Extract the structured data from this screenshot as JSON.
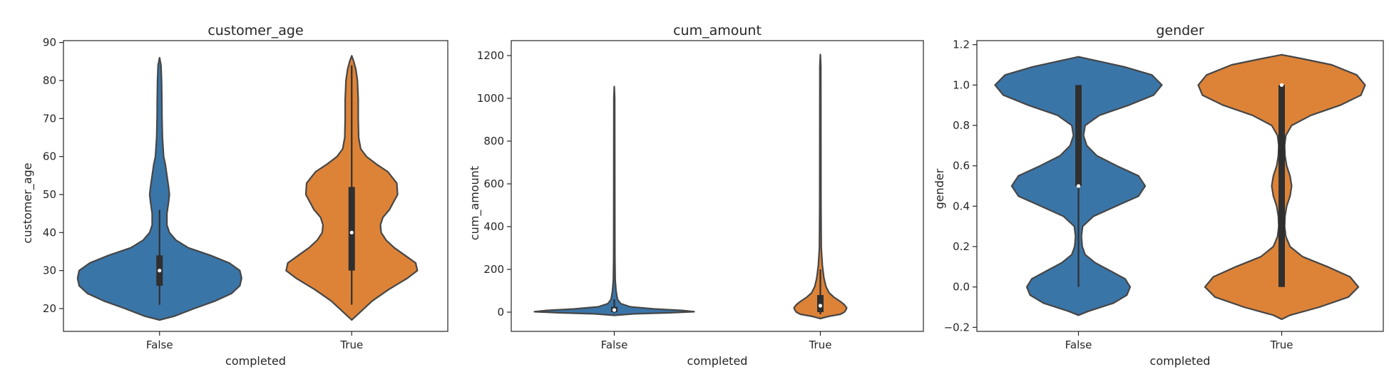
{
  "colors": {
    "false": "#3a75a8",
    "true": "#dd8338",
    "outline": "#464646",
    "box": "#2f2f2f"
  },
  "chart_data": [
    {
      "type": "violin",
      "title": "customer_age",
      "xlabel": "completed",
      "ylabel": "customer_age",
      "categories": [
        "False",
        "True"
      ],
      "ylim": [
        14,
        90.5
      ],
      "yticks": [
        20,
        30,
        40,
        50,
        60,
        70,
        80,
        90
      ],
      "ytick_labels": [
        "20",
        "30",
        "40",
        "50",
        "60",
        "70",
        "80",
        "90"
      ],
      "series": [
        {
          "category": "False",
          "q1": 26,
          "median": 30,
          "q3": 34,
          "whisker_low": 21,
          "whisker_high": 46,
          "density": [
            [
              17,
              0
            ],
            [
              18,
              0.18
            ],
            [
              20,
              0.42
            ],
            [
              22,
              0.68
            ],
            [
              24,
              0.88
            ],
            [
              26,
              0.98
            ],
            [
              28,
              1.0
            ],
            [
              30,
              0.98
            ],
            [
              32,
              0.85
            ],
            [
              34,
              0.62
            ],
            [
              36,
              0.35
            ],
            [
              38,
              0.2
            ],
            [
              40,
              0.12
            ],
            [
              42,
              0.09
            ],
            [
              45,
              0.09
            ],
            [
              48,
              0.11
            ],
            [
              50,
              0.12
            ],
            [
              52,
              0.11
            ],
            [
              55,
              0.09
            ],
            [
              58,
              0.07
            ],
            [
              60,
              0.05
            ],
            [
              65,
              0.035
            ],
            [
              70,
              0.03
            ],
            [
              75,
              0.028
            ],
            [
              80,
              0.025
            ],
            [
              84,
              0.018
            ],
            [
              86,
              0
            ]
          ]
        },
        {
          "category": "True",
          "q1": 30,
          "median": 40,
          "q3": 52,
          "whisker_low": 21,
          "whisker_high": 84,
          "density": [
            [
              17,
              0
            ],
            [
              19,
              0.1
            ],
            [
              22,
              0.25
            ],
            [
              25,
              0.45
            ],
            [
              28,
              0.68
            ],
            [
              30,
              0.8
            ],
            [
              32,
              0.78
            ],
            [
              34,
              0.65
            ],
            [
              36,
              0.52
            ],
            [
              38,
              0.42
            ],
            [
              40,
              0.36
            ],
            [
              42,
              0.35
            ],
            [
              44,
              0.38
            ],
            [
              46,
              0.46
            ],
            [
              50,
              0.56
            ],
            [
              53,
              0.55
            ],
            [
              56,
              0.44
            ],
            [
              58,
              0.3
            ],
            [
              60,
              0.18
            ],
            [
              62,
              0.11
            ],
            [
              65,
              0.085
            ],
            [
              70,
              0.08
            ],
            [
              75,
              0.08
            ],
            [
              80,
              0.07
            ],
            [
              83,
              0.05
            ],
            [
              85,
              0.025
            ],
            [
              86.5,
              0
            ]
          ]
        }
      ]
    },
    {
      "type": "violin",
      "title": "cum_amount",
      "xlabel": "completed",
      "ylabel": "cum_amount",
      "categories": [
        "False",
        "True"
      ],
      "ylim": [
        -90,
        1270
      ],
      "yticks": [
        0,
        200,
        400,
        600,
        800,
        1000,
        1200
      ],
      "ytick_labels": [
        "0",
        "200",
        "400",
        "600",
        "800",
        "1000",
        "1200"
      ],
      "series": [
        {
          "category": "False",
          "q1": 0,
          "median": 10,
          "q3": 25,
          "whisker_low": -5,
          "whisker_high": 60,
          "density": [
            [
              -15,
              0
            ],
            [
              -8,
              0.25
            ],
            [
              -3,
              0.7
            ],
            [
              2,
              1.0
            ],
            [
              8,
              0.85
            ],
            [
              15,
              0.5
            ],
            [
              25,
              0.2
            ],
            [
              40,
              0.08
            ],
            [
              60,
              0.04
            ],
            [
              100,
              0.022
            ],
            [
              150,
              0.012
            ],
            [
              250,
              0.008
            ],
            [
              400,
              0.007
            ],
            [
              700,
              0.006
            ],
            [
              1000,
              0.005
            ],
            [
              1055,
              0
            ]
          ]
        },
        {
          "category": "True",
          "q1": 0,
          "median": 30,
          "q3": 80,
          "whisker_low": -10,
          "whisker_high": 200,
          "density": [
            [
              -30,
              0
            ],
            [
              -20,
              0.1
            ],
            [
              -10,
              0.25
            ],
            [
              0,
              0.3
            ],
            [
              10,
              0.32
            ],
            [
              20,
              0.33
            ],
            [
              35,
              0.3
            ],
            [
              50,
              0.25
            ],
            [
              70,
              0.17
            ],
            [
              90,
              0.11
            ],
            [
              120,
              0.07
            ],
            [
              160,
              0.045
            ],
            [
              220,
              0.025
            ],
            [
              300,
              0.012
            ],
            [
              500,
              0.008
            ],
            [
              800,
              0.007
            ],
            [
              1150,
              0.006
            ],
            [
              1205,
              0
            ]
          ]
        }
      ]
    },
    {
      "type": "violin",
      "title": "gender",
      "xlabel": "completed",
      "ylabel": "gender",
      "categories": [
        "False",
        "True"
      ],
      "ylim": [
        -0.22,
        1.22
      ],
      "yticks": [
        -0.2,
        0.0,
        0.2,
        0.4,
        0.6,
        0.8,
        1.0,
        1.2
      ],
      "ytick_labels": [
        "−0.2",
        "0.0",
        "0.2",
        "0.4",
        "0.6",
        "0.8",
        "1.0",
        "1.2"
      ],
      "series": [
        {
          "category": "False",
          "q1": 0.5,
          "median": 0.5,
          "q3": 1.0,
          "whisker_low": 0.0,
          "whisker_high": 1.0,
          "density": [
            [
              -0.14,
              0
            ],
            [
              -0.12,
              0.12
            ],
            [
              -0.08,
              0.42
            ],
            [
              -0.04,
              0.58
            ],
            [
              0.0,
              0.62
            ],
            [
              0.04,
              0.56
            ],
            [
              0.08,
              0.38
            ],
            [
              0.12,
              0.2
            ],
            [
              0.16,
              0.08
            ],
            [
              0.2,
              0.045
            ],
            [
              0.25,
              0.035
            ],
            [
              0.3,
              0.05
            ],
            [
              0.35,
              0.18
            ],
            [
              0.4,
              0.45
            ],
            [
              0.45,
              0.72
            ],
            [
              0.5,
              0.8
            ],
            [
              0.55,
              0.72
            ],
            [
              0.6,
              0.46
            ],
            [
              0.65,
              0.22
            ],
            [
              0.7,
              0.1
            ],
            [
              0.75,
              0.06
            ],
            [
              0.8,
              0.08
            ],
            [
              0.85,
              0.25
            ],
            [
              0.9,
              0.6
            ],
            [
              0.95,
              0.9
            ],
            [
              1.0,
              1.0
            ],
            [
              1.05,
              0.88
            ],
            [
              1.09,
              0.55
            ],
            [
              1.12,
              0.22
            ],
            [
              1.14,
              0
            ]
          ]
        },
        {
          "category": "True",
          "q1": 0.0,
          "median": 1.0,
          "q3": 1.0,
          "whisker_low": 0.0,
          "whisker_high": 1.0,
          "density": [
            [
              -0.16,
              0
            ],
            [
              -0.14,
              0.1
            ],
            [
              -0.1,
              0.45
            ],
            [
              -0.05,
              0.8
            ],
            [
              0.0,
              0.92
            ],
            [
              0.05,
              0.82
            ],
            [
              0.1,
              0.55
            ],
            [
              0.15,
              0.25
            ],
            [
              0.2,
              0.1
            ],
            [
              0.25,
              0.05
            ],
            [
              0.3,
              0.035
            ],
            [
              0.35,
              0.04
            ],
            [
              0.4,
              0.06
            ],
            [
              0.45,
              0.1
            ],
            [
              0.5,
              0.12
            ],
            [
              0.55,
              0.1
            ],
            [
              0.6,
              0.06
            ],
            [
              0.65,
              0.04
            ],
            [
              0.7,
              0.035
            ],
            [
              0.75,
              0.05
            ],
            [
              0.8,
              0.12
            ],
            [
              0.85,
              0.35
            ],
            [
              0.9,
              0.7
            ],
            [
              0.95,
              0.95
            ],
            [
              1.0,
              1.0
            ],
            [
              1.05,
              0.9
            ],
            [
              1.1,
              0.6
            ],
            [
              1.13,
              0.25
            ],
            [
              1.15,
              0
            ]
          ]
        }
      ]
    }
  ]
}
